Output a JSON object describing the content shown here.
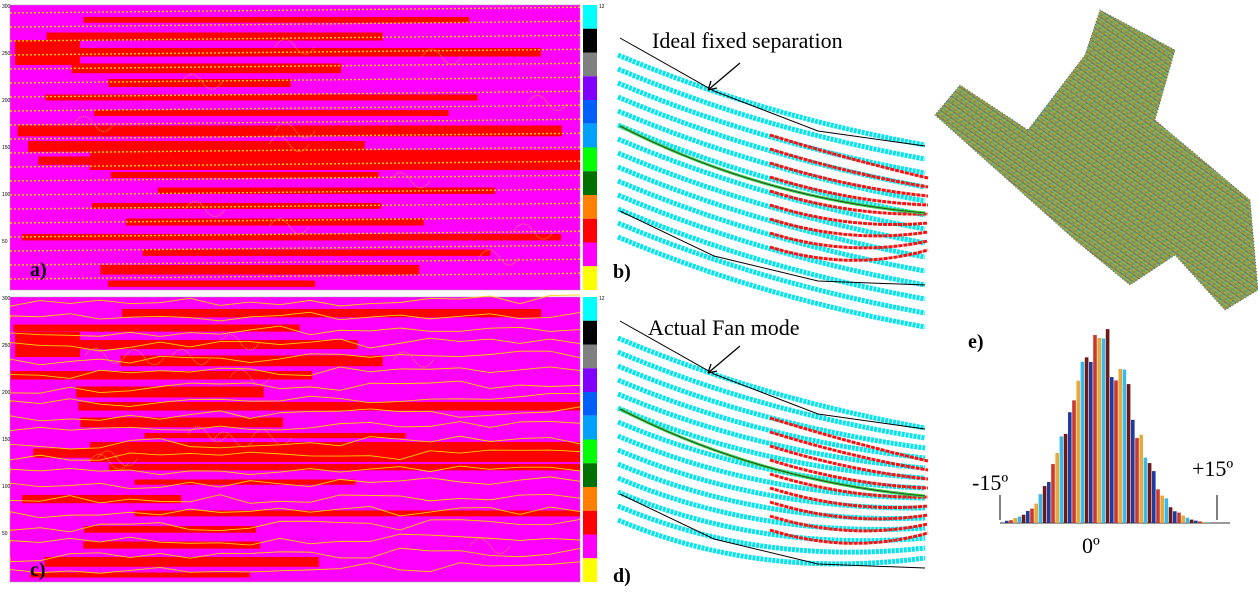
{
  "panels": {
    "a": {
      "label": "a)",
      "yticks": [
        "300",
        "250",
        "200",
        "150",
        "100",
        "50"
      ],
      "colorbar_top": "12"
    },
    "b": {
      "label": "b)",
      "annotation": "Ideal fixed separation"
    },
    "c": {
      "label": "c)",
      "yticks": [
        "300",
        "250",
        "200",
        "150",
        "100",
        "50"
      ],
      "colorbar_top": "12"
    },
    "d": {
      "label": "d)",
      "annotation": "Actual Fan mode"
    },
    "e": {
      "label": "e)",
      "left_label": "-15º",
      "right_label": "+15º",
      "center_label": "0º"
    }
  }
}
